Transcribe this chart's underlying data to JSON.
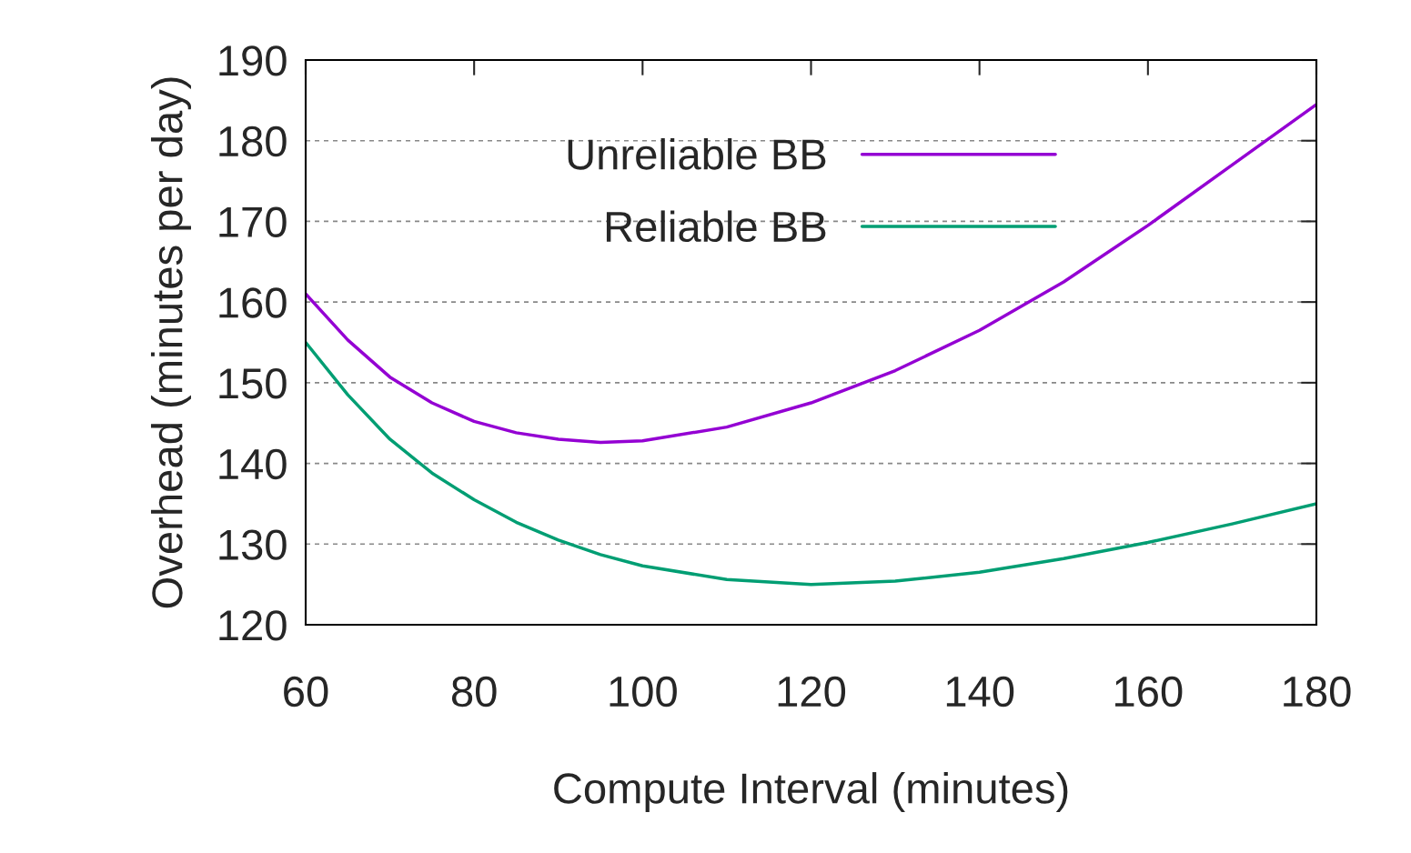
{
  "chart_data": {
    "type": "line",
    "xlabel": "Compute Interval (minutes)",
    "ylabel": "Overhead (minutes per day)",
    "x": [
      60,
      65,
      70,
      75,
      80,
      85,
      90,
      95,
      100,
      110,
      120,
      130,
      140,
      150,
      160,
      170,
      180
    ],
    "series": [
      {
        "name": "Unreliable BB",
        "color": "#9400d3",
        "values": [
          161,
          155.3,
          150.7,
          147.5,
          145.2,
          143.8,
          143,
          142.6,
          142.8,
          144.5,
          147.5,
          151.5,
          156.5,
          162.5,
          169.5,
          177,
          184.5
        ]
      },
      {
        "name": "Reliable BB",
        "color": "#009e73",
        "values": [
          155,
          148.5,
          143,
          138.8,
          135.5,
          132.7,
          130.5,
          128.7,
          127.3,
          125.6,
          125,
          125.4,
          126.5,
          128.2,
          130.2,
          132.5,
          135
        ]
      }
    ],
    "xlim": [
      60,
      180
    ],
    "xticks": [
      60,
      80,
      100,
      120,
      140,
      160,
      180
    ],
    "ylim": [
      120,
      190
    ],
    "yticks": [
      120,
      130,
      140,
      150,
      160,
      170,
      180,
      190
    ],
    "grid": "y",
    "legend": "top right",
    "marker": "none",
    "line_style": "solid"
  }
}
